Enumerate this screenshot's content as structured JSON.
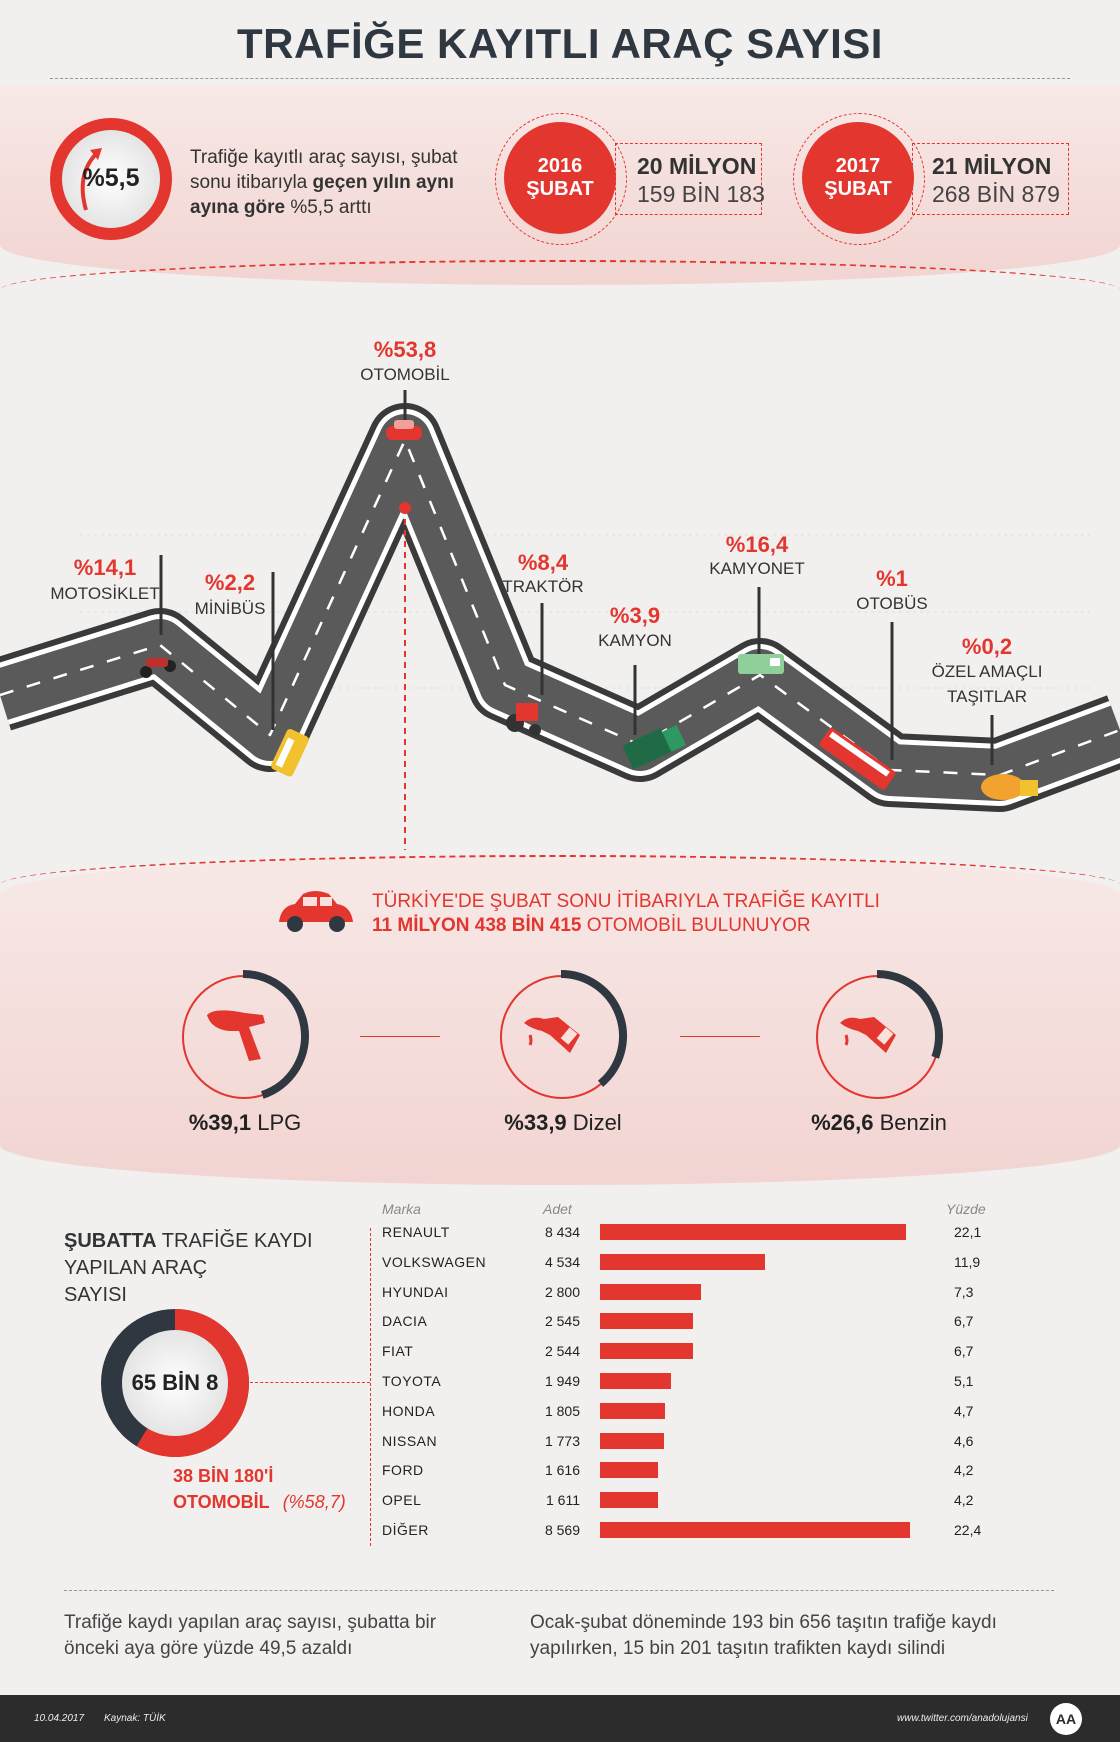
{
  "title": "TRAFİĞE KAYITLI ARAÇ SAYISI",
  "growth": {
    "pct": "%5,5",
    "text_a": "Trafiğe kayıtlı araç sayısı, şubat",
    "text_b": "sonu itibarıyla",
    "text_c": "geçen yılın aynı",
    "text_d": "ayına göre",
    "text_e": "%5,5 arttı"
  },
  "stats": [
    {
      "year": "2016",
      "month": "ŞUBAT",
      "line1": "20 MİLYON",
      "line2": "159 BİN 183"
    },
    {
      "year": "2017",
      "month": "ŞUBAT",
      "line1": "21 MİLYON",
      "line2": "268 BİN 879"
    }
  ],
  "vehicles": [
    {
      "pct": "%14,1",
      "label": "MOTOSİKLET",
      "icon": "motorcycle-icon"
    },
    {
      "pct": "%2,2",
      "label": "MİNİBÜS",
      "icon": "minibus-icon"
    },
    {
      "pct": "%53,8",
      "label": "OTOMOBİL",
      "icon": "car-icon"
    },
    {
      "pct": "%8,4",
      "label": "TRAKTÖR",
      "icon": "tractor-icon"
    },
    {
      "pct": "%3,9",
      "label": "KAMYON",
      "icon": "truck-icon"
    },
    {
      "pct": "%16,4",
      "label": "KAMYONET",
      "icon": "van-icon"
    },
    {
      "pct": "%1",
      "label": "OTOBÜS",
      "icon": "bus-icon"
    },
    {
      "pct": "%0,2",
      "label": "ÖZEL AMAÇLI",
      "label2": "TAŞITLAR",
      "icon": "mixer-truck-icon"
    }
  ],
  "cars": {
    "line1": "TÜRKİYE'DE ŞUBAT SONU İTİBARIYLA TRAFİĞE KAYITLI",
    "line2_bold": "11 MİLYON 438 BİN 415",
    "line2_rest": "OTOMOBİL BULUNUYOR"
  },
  "fuels": [
    {
      "pct": "%39,1",
      "name": "LPG",
      "value": 39.1,
      "icon": "lpg-nozzle-icon"
    },
    {
      "pct": "%33,9",
      "name": "Dizel",
      "value": 33.9,
      "icon": "fuel-nozzle-icon"
    },
    {
      "pct": "%26,6",
      "name": "Benzin",
      "value": 26.6,
      "icon": "fuel-nozzle-icon"
    }
  ],
  "monthly": {
    "title_bold": "ŞUBATTA",
    "title_rest1": "TRAFİĞE KAYDI",
    "title_rest2": "YAPILAN ARAÇ",
    "title_rest3": "SAYISI",
    "total": "65 BİN 8",
    "cars_line1": "38 BİN 180'İ",
    "cars_line2": "OTOMOBİL",
    "cars_pct": "(%58,7)",
    "share": 58.7
  },
  "table_headers": {
    "brand": "Marka",
    "count": "Adet",
    "pct": "Yüzde"
  },
  "notes": {
    "left_1": "Trafiğe kaydı yapılan araç sayısı, şubatta bir",
    "left_2": "önceki aya göre yüzde 49,5 azaldı",
    "right_1": "Ocak-şubat döneminde 193 bin 656 taşıtın trafiğe kaydı",
    "right_2": "yapılırken, 15 bin 201 taşıtın trafikten kaydı silindi"
  },
  "footer": {
    "date": "10.04.2017",
    "source": "Kaynak: TÜİK",
    "twitter": "www.twitter.com/anadolujansi",
    "logo": "AA"
  },
  "colors": {
    "accent": "#e2362f",
    "dark": "#2f3841",
    "road": "#5a5a5a"
  },
  "chart_data": {
    "type": "bar",
    "title": "",
    "categories": [
      "RENAULT",
      "VOLKSWAGEN",
      "HYUNDAI",
      "DACIA",
      "FIAT",
      "TOYOTA",
      "HONDA",
      "NISSAN",
      "FORD",
      "OPEL",
      "DİĞER"
    ],
    "counts": [
      "8 434",
      "4 534",
      "2 800",
      "2 545",
      "2 544",
      "1 949",
      "1 805",
      "1 773",
      "1 616",
      "1 611",
      "8 569"
    ],
    "pct_labels": [
      "22,1",
      "11,9",
      "7,3",
      "6,7",
      "6,7",
      "5,1",
      "4,7",
      "4,6",
      "4,2",
      "4,2",
      "22,4"
    ],
    "values": [
      22.1,
      11.9,
      7.3,
      6.7,
      6.7,
      5.1,
      4.7,
      4.6,
      4.2,
      4.2,
      22.4
    ],
    "xlim": [
      0,
      22.4
    ]
  }
}
